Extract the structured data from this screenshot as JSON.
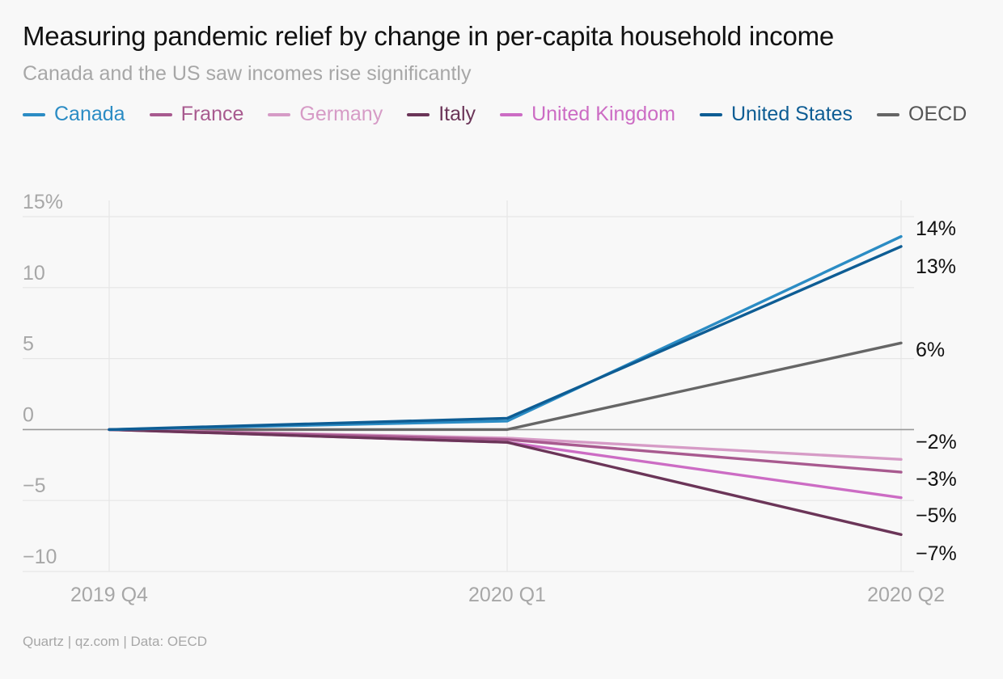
{
  "title": "Measuring pandemic relief by change in per-capita household income",
  "subtitle": "Canada and the US saw incomes rise significantly",
  "source": "Quartz | qz.com | Data: OECD",
  "chart_data": {
    "type": "line",
    "title": "Measuring pandemic relief by change in per-capita household income",
    "subtitle": "Canada and the US saw incomes rise significantly",
    "x": [
      "2019 Q4",
      "2020 Q1",
      "2020 Q2"
    ],
    "ylim": [
      -10,
      15
    ],
    "yticks": [
      15,
      10,
      5,
      0,
      -5,
      -10
    ],
    "ytick_labels": [
      "15%",
      "10",
      "5",
      "0",
      "−5",
      "−10"
    ],
    "xlabel": "",
    "ylabel": "",
    "grid": true,
    "legend_position": "top",
    "series": [
      {
        "name": "Canada",
        "color": "#2b8cc4",
        "values": [
          0,
          0.6,
          13.6
        ],
        "end_label": "14%"
      },
      {
        "name": "France",
        "color": "#a85a8f",
        "values": [
          0,
          -0.7,
          -3.0
        ],
        "end_label": "−3%"
      },
      {
        "name": "Germany",
        "color": "#d69bc6",
        "values": [
          0,
          -0.6,
          -2.1
        ],
        "end_label": "−2%"
      },
      {
        "name": "Italy",
        "color": "#6b3558",
        "values": [
          0,
          -0.9,
          -7.4
        ],
        "end_label": "−7%"
      },
      {
        "name": "United Kingdom",
        "color": "#cc6cc4",
        "values": [
          0,
          -0.9,
          -4.8
        ],
        "end_label": "−5%"
      },
      {
        "name": "United States",
        "color": "#0e5d94",
        "values": [
          0,
          0.8,
          12.9
        ],
        "end_label": "13%"
      },
      {
        "name": "OECD",
        "color": "#666666",
        "values": [
          0,
          0.0,
          6.1
        ],
        "end_label": "6%"
      }
    ]
  }
}
